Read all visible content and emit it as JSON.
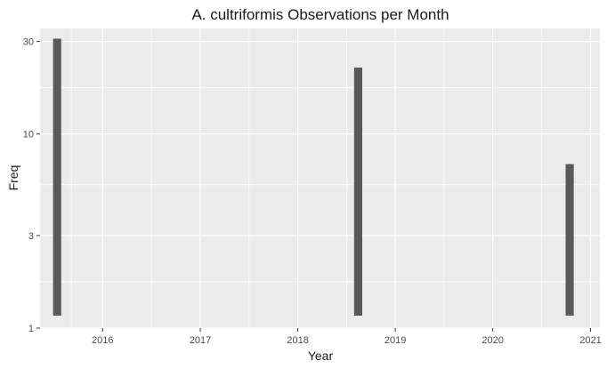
{
  "chart_data": {
    "type": "bar",
    "title": "A. cultriformis Observations per Month",
    "xlabel": "Year",
    "ylabel": "Freq",
    "y_scale": "log10",
    "ylim": [
      1,
      35
    ],
    "xlim": [
      "2015-05-12",
      "2021-02-05"
    ],
    "x_ticks": [
      "2016",
      "2017",
      "2018",
      "2019",
      "2020",
      "2021"
    ],
    "y_ticks": [
      "1",
      "3",
      "10",
      "30"
    ],
    "x": [
      "2015-07",
      "2018-08",
      "2020-10"
    ],
    "values": [
      31,
      22,
      7
    ],
    "bar_color": "#595959",
    "panel_background": "#ebebeb",
    "grid": true,
    "legend": "none"
  }
}
